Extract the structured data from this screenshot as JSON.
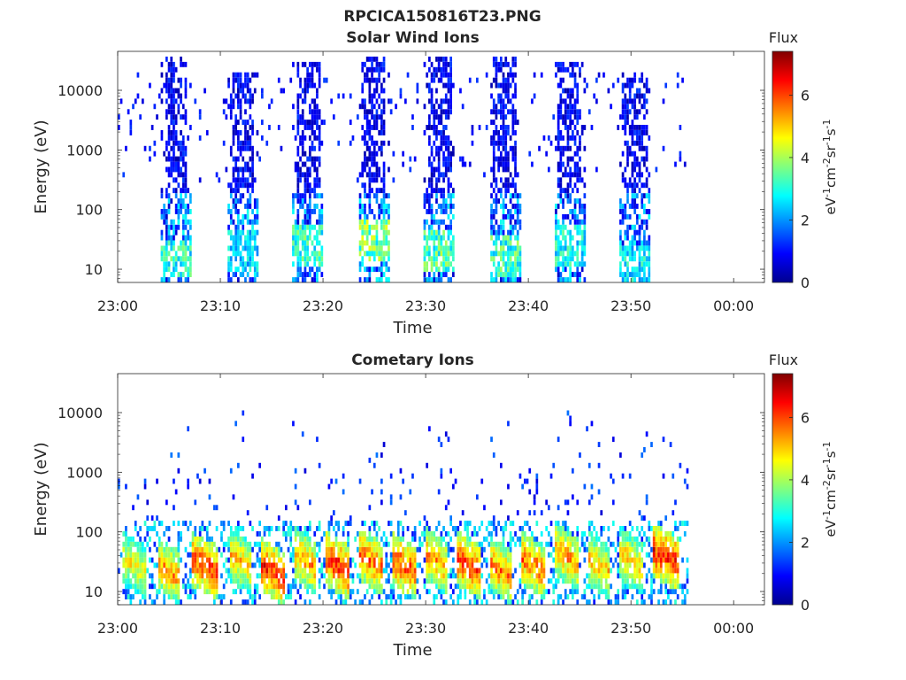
{
  "figure_title": "RPCICA150816T23.PNG",
  "chart_data": [
    {
      "type": "heatmap",
      "title": "Solar Wind Ions",
      "xlabel": "Time",
      "ylabel": "Energy (eV)",
      "x_tick_labels": [
        "23:00",
        "23:10",
        "23:20",
        "23:30",
        "23:40",
        "23:50",
        "00:00"
      ],
      "x_range_minutes": [
        0,
        63
      ],
      "y_scale": "log",
      "y_tick_labels": [
        "10",
        "100",
        "1000",
        "10000"
      ],
      "y_tick_values": [
        10,
        100,
        1000,
        10000
      ],
      "y_range": [
        6,
        45000
      ],
      "colorbar": {
        "title": "Flux",
        "label": "eV-1cm-2sr-1s-1",
        "range": [
          0,
          7.4
        ],
        "tick_labels": [
          "0",
          "2",
          "4",
          "6"
        ],
        "tick_values": [
          0,
          2,
          4,
          6
        ],
        "colormap": "jet"
      },
      "bursts": [
        {
          "start_min": 4.1,
          "end_min": 7.0,
          "emin": 6,
          "emax": 40000,
          "peak_energy": 15,
          "peak_flux": 3.8
        },
        {
          "start_min": 10.5,
          "end_min": 13.6,
          "emin": 6,
          "emax": 20000,
          "peak_energy": 20,
          "peak_flux": 3.2
        },
        {
          "start_min": 16.9,
          "end_min": 20.0,
          "emin": 6,
          "emax": 30000,
          "peak_energy": 25,
          "peak_flux": 4.0
        },
        {
          "start_min": 23.3,
          "end_min": 26.4,
          "emin": 6,
          "emax": 40000,
          "peak_energy": 30,
          "peak_flux": 4.6
        },
        {
          "start_min": 29.7,
          "end_min": 32.8,
          "emin": 6,
          "emax": 40000,
          "peak_energy": 20,
          "peak_flux": 4.3
        },
        {
          "start_min": 36.1,
          "end_min": 39.1,
          "emin": 6,
          "emax": 40000,
          "peak_energy": 18,
          "peak_flux": 4.1
        },
        {
          "start_min": 42.4,
          "end_min": 45.5,
          "emin": 6,
          "emax": 30000,
          "peak_energy": 25,
          "peak_flux": 3.6
        },
        {
          "start_min": 48.7,
          "end_min": 51.8,
          "emin": 6,
          "emax": 20000,
          "peak_energy": 12,
          "peak_flux": 3.4
        }
      ],
      "data_end_min": 55.5
    },
    {
      "type": "heatmap",
      "title": "Cometary Ions",
      "xlabel": "Time",
      "ylabel": "Energy (eV)",
      "x_tick_labels": [
        "23:00",
        "23:10",
        "23:20",
        "23:30",
        "23:40",
        "23:50",
        "00:00"
      ],
      "x_range_minutes": [
        0,
        63
      ],
      "y_scale": "log",
      "y_tick_labels": [
        "10",
        "100",
        "1000",
        "10000"
      ],
      "y_tick_values": [
        10,
        100,
        1000,
        10000
      ],
      "y_range": [
        6,
        45000
      ],
      "colorbar": {
        "title": "Flux",
        "label": "eV-1cm-2sr-1s-1",
        "range": [
          0,
          7.4
        ],
        "tick_labels": [
          "0",
          "2",
          "4",
          "6"
        ],
        "tick_values": [
          0,
          2,
          4,
          6
        ],
        "colormap": "jet"
      },
      "bursts": [
        {
          "start_min": 0.3,
          "end_min": 3.6,
          "emin": 6,
          "emax": 1500,
          "peak_energy": 25,
          "peak_flux": 5.4
        },
        {
          "start_min": 3.6,
          "end_min": 6.8,
          "emin": 6,
          "emax": 8000,
          "peak_energy": 20,
          "peak_flux": 6.2
        },
        {
          "start_min": 6.8,
          "end_min": 10.6,
          "emin": 6,
          "emax": 1500,
          "peak_energy": 25,
          "peak_flux": 7.0
        },
        {
          "start_min": 10.6,
          "end_min": 13.6,
          "emin": 6,
          "emax": 10000,
          "peak_energy": 30,
          "peak_flux": 5.8
        },
        {
          "start_min": 13.6,
          "end_min": 16.9,
          "emin": 6,
          "emax": 1500,
          "peak_energy": 20,
          "peak_flux": 7.2
        },
        {
          "start_min": 16.9,
          "end_min": 20.0,
          "emin": 6,
          "emax": 10000,
          "peak_energy": 30,
          "peak_flux": 6.2
        },
        {
          "start_min": 20.0,
          "end_min": 23.3,
          "emin": 6,
          "emax": 1500,
          "peak_energy": 25,
          "peak_flux": 7.3
        },
        {
          "start_min": 23.3,
          "end_min": 26.4,
          "emin": 6,
          "emax": 4000,
          "peak_energy": 30,
          "peak_flux": 6.6
        },
        {
          "start_min": 26.4,
          "end_min": 29.7,
          "emin": 6,
          "emax": 1500,
          "peak_energy": 25,
          "peak_flux": 7.0
        },
        {
          "start_min": 29.7,
          "end_min": 32.8,
          "emin": 6,
          "emax": 8000,
          "peak_energy": 30,
          "peak_flux": 6.2
        },
        {
          "start_min": 32.8,
          "end_min": 36.1,
          "emin": 6,
          "emax": 1500,
          "peak_energy": 25,
          "peak_flux": 7.1
        },
        {
          "start_min": 36.1,
          "end_min": 39.1,
          "emin": 6,
          "emax": 8000,
          "peak_energy": 20,
          "peak_flux": 6.4
        },
        {
          "start_min": 39.1,
          "end_min": 42.4,
          "emin": 6,
          "emax": 1500,
          "peak_energy": 25,
          "peak_flux": 6.6
        },
        {
          "start_min": 42.4,
          "end_min": 45.5,
          "emin": 6,
          "emax": 10000,
          "peak_energy": 35,
          "peak_flux": 6.2
        },
        {
          "start_min": 45.5,
          "end_min": 48.7,
          "emin": 6,
          "emax": 8000,
          "peak_energy": 25,
          "peak_flux": 5.8
        },
        {
          "start_min": 48.7,
          "end_min": 51.8,
          "emin": 6,
          "emax": 8000,
          "peak_energy": 30,
          "peak_flux": 5.8
        },
        {
          "start_min": 51.8,
          "end_min": 55.5,
          "emin": 6,
          "emax": 5000,
          "peak_energy": 35,
          "peak_flux": 7.3
        }
      ],
      "data_end_min": 55.5
    }
  ]
}
